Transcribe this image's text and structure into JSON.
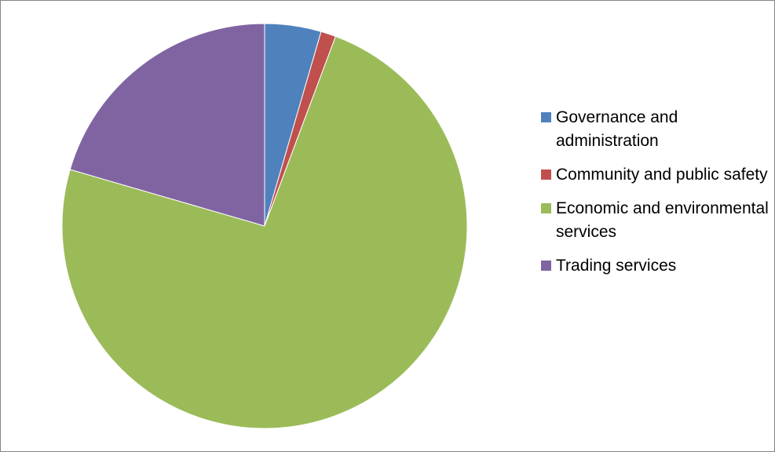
{
  "chart_data": {
    "type": "pie",
    "title": "",
    "start_angle_deg": 0,
    "direction": "clockwise",
    "legend_position": "right",
    "slices": [
      {
        "label": "Governance and administration",
        "value": 4.5,
        "color": "#4F81BD"
      },
      {
        "label": "Community and public safety",
        "value": 1.2,
        "color": "#C0504D"
      },
      {
        "label": "Economic and environmental services",
        "value": 73.8,
        "color": "#9BBB59"
      },
      {
        "label": "Trading services",
        "value": 20.5,
        "color": "#8064A2"
      }
    ]
  }
}
